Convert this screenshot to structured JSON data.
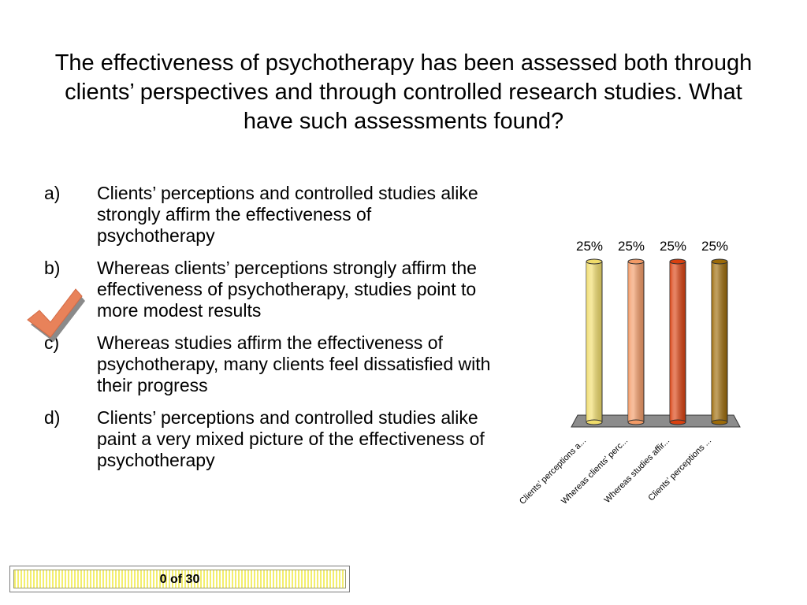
{
  "question": "The effectiveness of psychotherapy has been assessed both through clients’ perspectives and through controlled research studies. What have such assessments found?",
  "options": [
    {
      "letter": "a)",
      "text": "Clients’ perceptions and controlled studies alike strongly affirm the effectiveness of psychotherapy"
    },
    {
      "letter": "b)",
      "text": "Whereas clients’ perceptions strongly affirm the effectiveness of psychotherapy, studies point to more modest results"
    },
    {
      "letter": "c)",
      "text": "Whereas studies affirm the effectiveness of psychotherapy, many clients feel dissatisfied with their progress"
    },
    {
      "letter": "d)",
      "text": "Clients’ perceptions and controlled studies alike paint a very mixed picture of the effectiveness of psychotherapy"
    }
  ],
  "correct_marker": {
    "icon": "checkmark-icon",
    "option_index": 1,
    "color": "#e8825a"
  },
  "counter": "0 of 30",
  "chart_data": {
    "type": "bar",
    "style": "3d-cylinder",
    "categories": [
      "Clients’ perceptions a...",
      "Whereas clients’ perc...",
      "Whereas studies affir...",
      "Clients’ perceptions ..."
    ],
    "values": [
      25,
      25,
      25,
      25
    ],
    "data_labels": [
      "25%",
      "25%",
      "25%",
      "25%"
    ],
    "colors": [
      "#f0dc6a",
      "#f29a66",
      "#d9400f",
      "#9c6a08"
    ],
    "ylim": [
      0,
      25
    ],
    "grid": false,
    "legend": "none",
    "title": "",
    "xlabel": "",
    "ylabel": ""
  }
}
